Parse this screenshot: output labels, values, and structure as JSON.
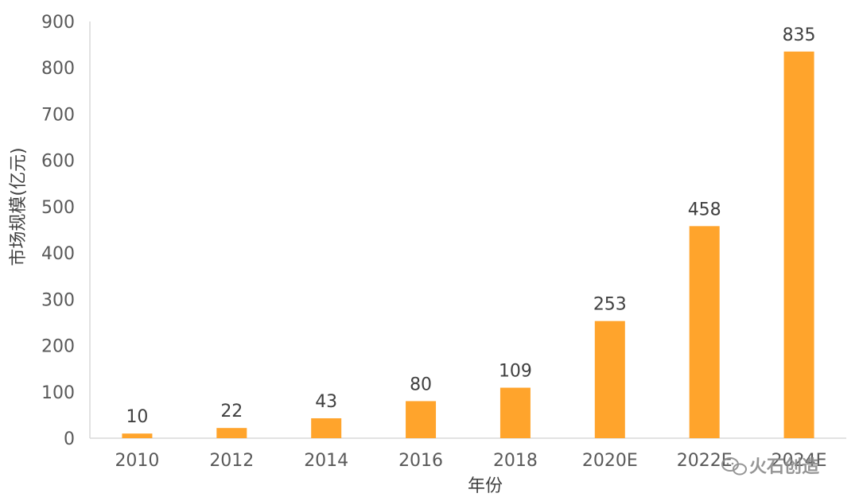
{
  "chart_data": {
    "type": "bar",
    "categories": [
      "2010",
      "2012",
      "2014",
      "2016",
      "2018",
      "2020E",
      "2022E",
      "2024E"
    ],
    "values": [
      10,
      22,
      43,
      80,
      109,
      253,
      458,
      835
    ],
    "data_labels": [
      "10",
      "22",
      "43",
      "80",
      "109",
      "253",
      "458",
      "835"
    ],
    "xlabel": "年份",
    "ylabel": "市场规模(亿元)",
    "ylim": [
      0,
      900
    ],
    "yticks": [
      0,
      100,
      200,
      300,
      400,
      500,
      600,
      700,
      800,
      900
    ],
    "grid": false,
    "legend": "none",
    "bar_color": "#FFA42C"
  },
  "watermark": {
    "text": "火石创造",
    "icon": "wechat-icon"
  }
}
